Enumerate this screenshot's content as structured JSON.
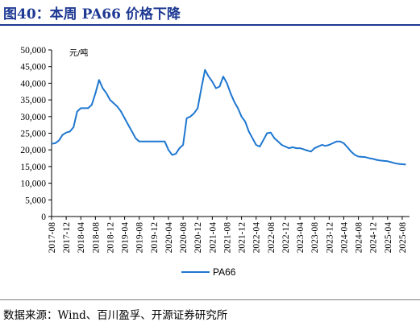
{
  "figure": {
    "title": "图40：本周 PA66 价格下降",
    "source": "数据来源：Wind、百川盈孚、开源证券研究所"
  },
  "chart_data": {
    "type": "line",
    "unit_label": "元/吨",
    "ylim": [
      0,
      50000
    ],
    "yticks": [
      "50,000",
      "45,000",
      "40,000",
      "35,000",
      "30,000",
      "25,000",
      "20,000",
      "15,000",
      "10,000",
      "5,000",
      "0"
    ],
    "ytick_values": [
      50000,
      45000,
      40000,
      35000,
      30000,
      25000,
      20000,
      15000,
      10000,
      5000,
      0
    ],
    "xlim": [
      "2017-08",
      "2025-10"
    ],
    "xticks": [
      "2017-08",
      "2017-12",
      "2018-04",
      "2018-08",
      "2018-12",
      "2019-04",
      "2019-08",
      "2019-12",
      "2020-04",
      "2020-08",
      "2020-12",
      "2021-04",
      "2021-08",
      "2021-12",
      "2022-04",
      "2022-08",
      "2022-12",
      "2023-04",
      "2023-08",
      "2023-12",
      "2024-04",
      "2024-08",
      "2024-12",
      "2025-04",
      "2025-08"
    ],
    "legend": "bottom-center",
    "color": "#1f77d0",
    "series": [
      {
        "name": "PA66",
        "x": [
          "2017-08",
          "2017-09",
          "2017-10",
          "2017-11",
          "2017-12",
          "2018-01",
          "2018-02",
          "2018-03",
          "2018-04",
          "2018-05",
          "2018-06",
          "2018-07",
          "2018-08",
          "2018-09",
          "2018-10",
          "2018-11",
          "2018-12",
          "2019-01",
          "2019-02",
          "2019-03",
          "2019-04",
          "2019-05",
          "2019-06",
          "2019-07",
          "2019-08",
          "2019-09",
          "2019-10",
          "2019-11",
          "2019-12",
          "2020-01",
          "2020-02",
          "2020-03",
          "2020-04",
          "2020-05",
          "2020-06",
          "2020-07",
          "2020-08",
          "2020-09",
          "2020-10",
          "2020-11",
          "2020-12",
          "2021-01",
          "2021-02",
          "2021-03",
          "2021-04",
          "2021-05",
          "2021-06",
          "2021-07",
          "2021-08",
          "2021-09",
          "2021-10",
          "2021-11",
          "2021-12",
          "2022-01",
          "2022-02",
          "2022-03",
          "2022-04",
          "2022-05",
          "2022-06",
          "2022-07",
          "2022-08",
          "2022-09",
          "2022-10",
          "2022-11",
          "2022-12",
          "2023-01",
          "2023-02",
          "2023-03",
          "2023-04",
          "2023-05",
          "2023-06",
          "2023-07",
          "2023-08",
          "2023-09",
          "2023-10",
          "2023-11",
          "2023-12",
          "2024-01",
          "2024-02",
          "2024-03",
          "2024-04",
          "2024-05",
          "2024-06",
          "2024-07",
          "2024-08",
          "2024-09",
          "2024-10",
          "2024-11",
          "2024-12",
          "2025-01",
          "2025-02",
          "2025-03",
          "2025-04",
          "2025-05",
          "2025-06",
          "2025-07",
          "2025-08",
          "2025-09"
        ],
        "values": [
          21800,
          22000,
          22800,
          24500,
          25200,
          25500,
          26800,
          31500,
          32500,
          32500,
          32500,
          33500,
          37000,
          41000,
          38500,
          37000,
          35000,
          34000,
          33000,
          31500,
          29500,
          27500,
          25500,
          23500,
          22500,
          22500,
          22500,
          22500,
          22500,
          22500,
          22500,
          22500,
          20000,
          18500,
          18800,
          20500,
          21500,
          29500,
          30000,
          31000,
          32500,
          38500,
          44000,
          42000,
          40500,
          38500,
          39000,
          42000,
          40000,
          37000,
          34500,
          32500,
          30000,
          28500,
          25500,
          23500,
          21500,
          21000,
          23000,
          25000,
          25200,
          23500,
          22500,
          21500,
          21000,
          20500,
          20800,
          20500,
          20500,
          20200,
          19800,
          19500,
          20500,
          21000,
          21500,
          21200,
          21500,
          22000,
          22500,
          22500,
          22000,
          20800,
          19500,
          18500,
          18000,
          17900,
          17800,
          17500,
          17300,
          17000,
          16800,
          16700,
          16600,
          16300,
          16000,
          15800,
          15700,
          15600
        ]
      }
    ]
  }
}
